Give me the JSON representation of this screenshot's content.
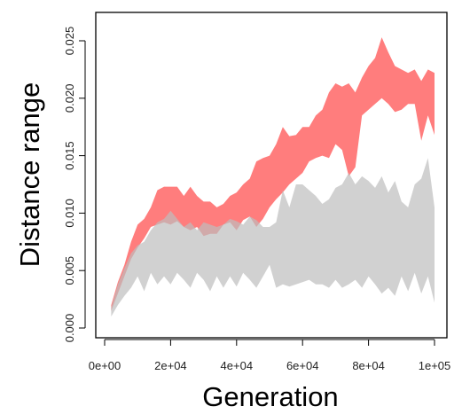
{
  "chart_data": {
    "type": "area",
    "xlabel": "Generation",
    "ylabel": "Distance range",
    "xlim": [
      0,
      100000
    ],
    "ylim": [
      0,
      0.026
    ],
    "xticks": [
      0,
      20000,
      40000,
      60000,
      80000,
      100000
    ],
    "xtick_labels": [
      "0e+00",
      "2e+04",
      "4e+04",
      "6e+04",
      "8e+04",
      "1e+05"
    ],
    "yticks": [
      0,
      0.005,
      0.01,
      0.015,
      0.02,
      0.025
    ],
    "ytick_labels": [
      "0.000",
      "0.005",
      "0.010",
      "0.015",
      "0.020",
      "0.025"
    ],
    "grid": false,
    "series": [
      {
        "color": "#ff6666",
        "opacity": 0.85,
        "x": [
          2000,
          4000,
          6000,
          8000,
          10000,
          12000,
          14000,
          16000,
          18000,
          20000,
          22000,
          24000,
          26000,
          28000,
          30000,
          32000,
          34000,
          36000,
          38000,
          40000,
          42000,
          44000,
          46000,
          48000,
          50000,
          52000,
          54000,
          56000,
          58000,
          60000,
          62000,
          64000,
          66000,
          68000,
          70000,
          72000,
          74000,
          76000,
          78000,
          80000,
          82000,
          84000,
          86000,
          88000,
          90000,
          92000,
          94000,
          96000,
          98000,
          100000
        ],
        "upper": [
          0.002,
          0.004,
          0.0055,
          0.0075,
          0.009,
          0.0095,
          0.0105,
          0.012,
          0.0123,
          0.0123,
          0.0123,
          0.0115,
          0.0123,
          0.0115,
          0.011,
          0.011,
          0.0105,
          0.0108,
          0.0115,
          0.0118,
          0.0125,
          0.013,
          0.0145,
          0.0148,
          0.015,
          0.016,
          0.0175,
          0.0167,
          0.0168,
          0.0175,
          0.0175,
          0.0185,
          0.019,
          0.0205,
          0.0213,
          0.021,
          0.0213,
          0.0205,
          0.0218,
          0.0228,
          0.0235,
          0.0253,
          0.024,
          0.0228,
          0.0225,
          0.0222,
          0.0225,
          0.0215,
          0.0225,
          0.0222
        ],
        "lower": [
          0.0015,
          0.003,
          0.0045,
          0.006,
          0.007,
          0.0078,
          0.0088,
          0.009,
          0.0092,
          0.009,
          0.0093,
          0.0088,
          0.0085,
          0.0088,
          0.008,
          0.0082,
          0.0082,
          0.009,
          0.0092,
          0.0085,
          0.0094,
          0.0097,
          0.0088,
          0.0095,
          0.0105,
          0.0112,
          0.0118,
          0.0125,
          0.013,
          0.0135,
          0.0145,
          0.0148,
          0.015,
          0.0148,
          0.016,
          0.0155,
          0.0132,
          0.014,
          0.0185,
          0.019,
          0.0195,
          0.02,
          0.0195,
          0.0188,
          0.019,
          0.0195,
          0.0195,
          0.0163,
          0.0185,
          0.0168
        ]
      },
      {
        "color": "#bdbdbd",
        "opacity": 0.7,
        "x": [
          2000,
          4000,
          6000,
          8000,
          10000,
          12000,
          14000,
          16000,
          18000,
          20000,
          22000,
          24000,
          26000,
          28000,
          30000,
          32000,
          34000,
          36000,
          38000,
          40000,
          42000,
          44000,
          46000,
          48000,
          50000,
          52000,
          54000,
          56000,
          58000,
          60000,
          62000,
          64000,
          66000,
          68000,
          70000,
          72000,
          74000,
          76000,
          78000,
          80000,
          82000,
          84000,
          86000,
          88000,
          90000,
          92000,
          94000,
          96000,
          98000,
          100000
        ],
        "upper": [
          0.0018,
          0.0038,
          0.0052,
          0.0065,
          0.0072,
          0.0075,
          0.0085,
          0.0092,
          0.0095,
          0.0102,
          0.0095,
          0.0088,
          0.0092,
          0.0085,
          0.0092,
          0.009,
          0.0088,
          0.009,
          0.0095,
          0.0093,
          0.009,
          0.0097,
          0.0094,
          0.0088,
          0.0088,
          0.0092,
          0.012,
          0.0105,
          0.0125,
          0.0125,
          0.012,
          0.0115,
          0.0108,
          0.0112,
          0.0122,
          0.0125,
          0.0135,
          0.0125,
          0.0132,
          0.0128,
          0.0122,
          0.0132,
          0.0118,
          0.0128,
          0.011,
          0.0105,
          0.0125,
          0.013,
          0.0148,
          0.0105
        ],
        "lower": [
          0.001,
          0.002,
          0.0028,
          0.0035,
          0.0045,
          0.0032,
          0.0048,
          0.0038,
          0.0045,
          0.0038,
          0.0048,
          0.0042,
          0.0035,
          0.0048,
          0.0042,
          0.0032,
          0.0045,
          0.0035,
          0.0045,
          0.0036,
          0.0048,
          0.0042,
          0.0035,
          0.0045,
          0.0055,
          0.0035,
          0.0038,
          0.0036,
          0.0038,
          0.004,
          0.0042,
          0.0038,
          0.0038,
          0.0035,
          0.0042,
          0.0035,
          0.0038,
          0.0042,
          0.0035,
          0.0045,
          0.0038,
          0.003,
          0.0035,
          0.0028,
          0.0045,
          0.0032,
          0.0048,
          0.003,
          0.0045,
          0.0022
        ]
      }
    ]
  }
}
